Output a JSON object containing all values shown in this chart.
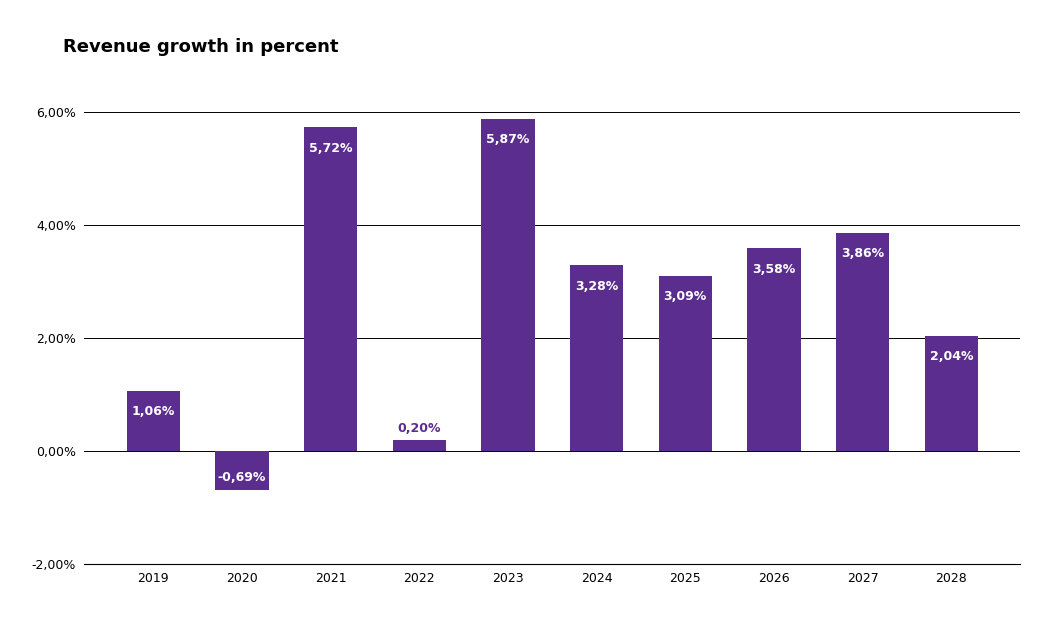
{
  "categories": [
    "2019",
    "2020",
    "2021",
    "2022",
    "2023",
    "2024",
    "2025",
    "2026",
    "2027",
    "2028"
  ],
  "values": [
    1.06,
    -0.69,
    5.72,
    0.2,
    5.87,
    3.28,
    3.09,
    3.58,
    3.86,
    2.04
  ],
  "labels": [
    "1,06%",
    "-0,69%",
    "5,72%",
    "0,20%",
    "5,87%",
    "3,28%",
    "3,09%",
    "3,58%",
    "3,86%",
    "2,04%"
  ],
  "bar_color": "#5B2D8E",
  "title": "Revenue growth in percent",
  "title_fontsize": 13,
  "title_fontweight": "bold",
  "ylim": [
    -2.0,
    6.5
  ],
  "yticks": [
    -2.0,
    0.0,
    2.0,
    4.0,
    6.0
  ],
  "ytick_labels": [
    "-2,00%",
    "0,00%",
    "2,00%",
    "4,00%",
    "6,00%"
  ],
  "background_color": "#ffffff",
  "grid_color": "#000000",
  "label_fontsize": 9,
  "tick_fontsize": 9,
  "label_inside_color": "#ffffff",
  "label_outside_color": "#5B2D8E",
  "inside_threshold": 0.5
}
